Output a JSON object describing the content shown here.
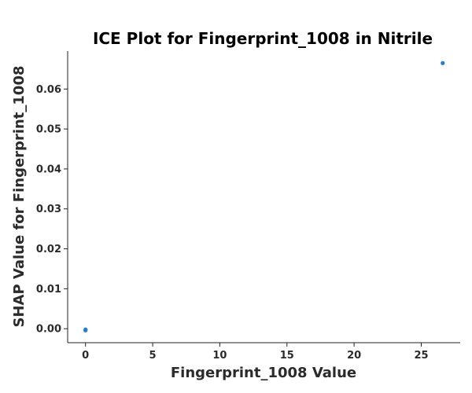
{
  "chart_data": {
    "type": "scatter",
    "title": "ICE Plot for Fingerprint_1008 in Nitrile",
    "xlabel": "Fingerprint_1008 Value",
    "ylabel": "SHAP Value for Fingerprint_1008",
    "xlim": [
      -1.33,
      27.9
    ],
    "ylim": [
      -0.0035,
      0.0695
    ],
    "xticks": [
      0,
      5,
      10,
      15,
      20,
      25
    ],
    "xtick_labels": [
      "0",
      "5",
      "10",
      "15",
      "20",
      "25"
    ],
    "yticks": [
      0.0,
      0.01,
      0.02,
      0.03,
      0.04,
      0.05,
      0.06
    ],
    "ytick_labels": [
      "0.00",
      "0.01",
      "0.02",
      "0.03",
      "0.04",
      "0.05",
      "0.06"
    ],
    "grid": false,
    "series": [
      {
        "color": "#1f7fd6",
        "points": [
          {
            "x": 0,
            "y": -0.0003
          },
          {
            "x": 0,
            "y": -0.0004
          },
          {
            "x": 0,
            "y": -0.0002
          },
          {
            "x": 26.6,
            "y": 0.0665
          }
        ]
      }
    ]
  }
}
